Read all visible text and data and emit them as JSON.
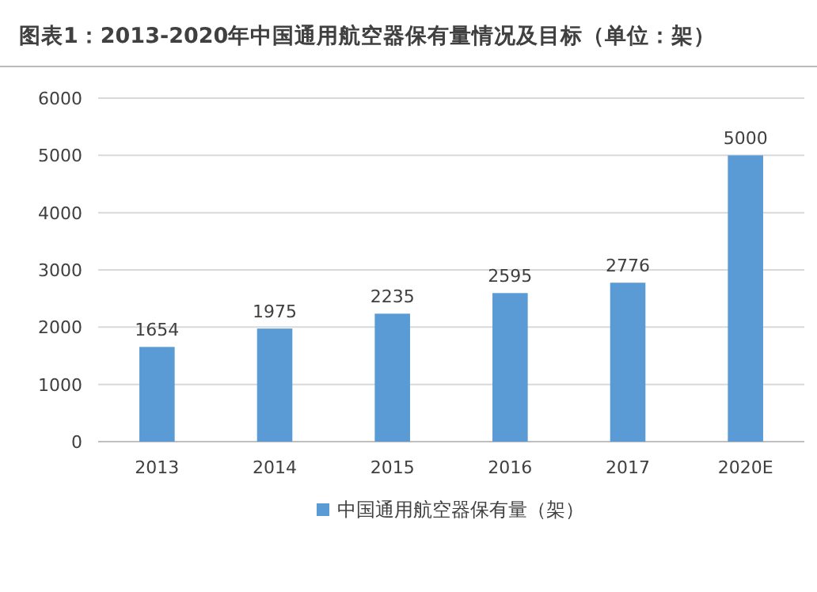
{
  "chart_data": {
    "type": "bar",
    "title": "图表1：2013-2020年中国通用航空器保有量情况及目标（单位：架）",
    "categories": [
      "2013",
      "2014",
      "2015",
      "2016",
      "2017",
      "2020E"
    ],
    "series": [
      {
        "name": "中国通用航空器保有量（架）",
        "color": "#5b9bd5",
        "values": [
          1654,
          1975,
          2235,
          2595,
          2776,
          5000
        ]
      }
    ],
    "ylim": [
      0,
      6000
    ],
    "yticks": [
      0,
      1000,
      2000,
      3000,
      4000,
      5000,
      6000
    ],
    "grid": "y",
    "legend": "bottom",
    "data_labels": true
  }
}
